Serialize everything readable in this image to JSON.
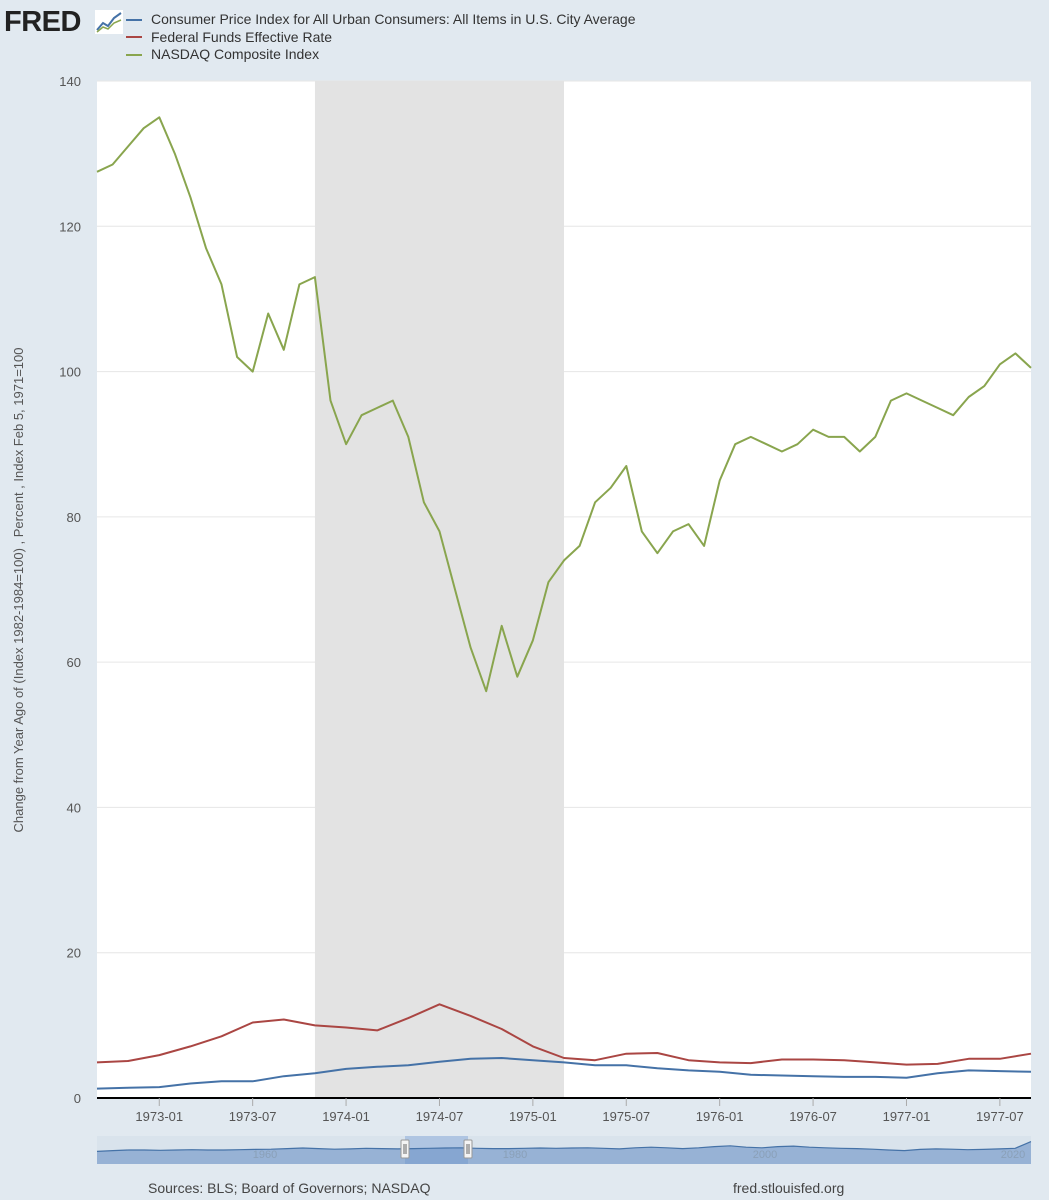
{
  "header": {
    "logo_text": "FRED",
    "logo_icon": "fred-line-chart-icon"
  },
  "footer": {
    "sources": "Sources: BLS; Board of Governors; NASDAQ",
    "url": "fred.stlouisfed.org"
  },
  "chart_data": {
    "type": "line",
    "ylabel": "Change from Year Ago of (Index 1982-1984=100) , Percent , Index Feb 5, 1971=100",
    "ylim": [
      0,
      140
    ],
    "yticks": [
      0,
      20,
      40,
      60,
      80,
      100,
      120,
      140
    ],
    "xlim": [
      "1972-09",
      "1977-09"
    ],
    "xticks": [
      "1973-01",
      "1973-07",
      "1974-01",
      "1974-07",
      "1975-01",
      "1975-07",
      "1976-01",
      "1976-07",
      "1977-01",
      "1977-07"
    ],
    "grid": true,
    "legend_position": "top",
    "recession": {
      "start": "1973-11",
      "end": "1975-03",
      "color": "#e3e3e3"
    },
    "series": [
      {
        "name": "Consumer Price Index for All Urban Consumers: All Items in U.S. City Average",
        "color": "#4572a7",
        "points": [
          [
            "1972-09",
            1.3
          ],
          [
            "1972-11",
            1.4
          ],
          [
            "1973-01",
            1.5
          ],
          [
            "1973-03",
            2.0
          ],
          [
            "1973-05",
            2.3
          ],
          [
            "1973-07",
            2.3
          ],
          [
            "1973-09",
            3.0
          ],
          [
            "1973-11",
            3.4
          ],
          [
            "1974-01",
            4.0
          ],
          [
            "1974-03",
            4.3
          ],
          [
            "1974-05",
            4.5
          ],
          [
            "1974-07",
            5.0
          ],
          [
            "1974-09",
            5.4
          ],
          [
            "1974-11",
            5.5
          ],
          [
            "1975-01",
            5.2
          ],
          [
            "1975-03",
            4.9
          ],
          [
            "1975-05",
            4.5
          ],
          [
            "1975-07",
            4.5
          ],
          [
            "1975-09",
            4.1
          ],
          [
            "1975-11",
            3.8
          ],
          [
            "1976-01",
            3.6
          ],
          [
            "1976-03",
            3.2
          ],
          [
            "1976-05",
            3.1
          ],
          [
            "1976-07",
            3.0
          ],
          [
            "1976-09",
            2.9
          ],
          [
            "1976-11",
            2.9
          ],
          [
            "1977-01",
            2.8
          ],
          [
            "1977-03",
            3.4
          ],
          [
            "1977-05",
            3.8
          ],
          [
            "1977-07",
            3.7
          ],
          [
            "1977-09",
            3.6
          ]
        ]
      },
      {
        "name": "Federal Funds Effective Rate",
        "color": "#aa4643",
        "points": [
          [
            "1972-09",
            4.9
          ],
          [
            "1972-11",
            5.1
          ],
          [
            "1973-01",
            5.9
          ],
          [
            "1973-03",
            7.1
          ],
          [
            "1973-05",
            8.5
          ],
          [
            "1973-07",
            10.4
          ],
          [
            "1973-09",
            10.8
          ],
          [
            "1973-11",
            10.0
          ],
          [
            "1974-01",
            9.7
          ],
          [
            "1974-03",
            9.3
          ],
          [
            "1974-05",
            11.0
          ],
          [
            "1974-07",
            12.9
          ],
          [
            "1974-09",
            11.3
          ],
          [
            "1974-11",
            9.5
          ],
          [
            "1975-01",
            7.1
          ],
          [
            "1975-03",
            5.5
          ],
          [
            "1975-05",
            5.2
          ],
          [
            "1975-07",
            6.1
          ],
          [
            "1975-09",
            6.2
          ],
          [
            "1975-11",
            5.2
          ],
          [
            "1976-01",
            4.9
          ],
          [
            "1976-03",
            4.8
          ],
          [
            "1976-05",
            5.3
          ],
          [
            "1976-07",
            5.3
          ],
          [
            "1976-09",
            5.2
          ],
          [
            "1976-11",
            4.9
          ],
          [
            "1977-01",
            4.6
          ],
          [
            "1977-03",
            4.7
          ],
          [
            "1977-05",
            5.4
          ],
          [
            "1977-07",
            5.4
          ],
          [
            "1977-09",
            6.1
          ]
        ]
      },
      {
        "name": "NASDAQ Composite Index",
        "color": "#89a54e",
        "points": [
          [
            "1972-09",
            127.5
          ],
          [
            "1972-10",
            128.5
          ],
          [
            "1972-11",
            131.0
          ],
          [
            "1972-12",
            133.5
          ],
          [
            "1973-01",
            135.0
          ],
          [
            "1973-02",
            130.0
          ],
          [
            "1973-03",
            124.0
          ],
          [
            "1973-04",
            117.0
          ],
          [
            "1973-05",
            112.0
          ],
          [
            "1973-06",
            102.0
          ],
          [
            "1973-07",
            100.0
          ],
          [
            "1973-08",
            108.0
          ],
          [
            "1973-09",
            103.0
          ],
          [
            "1973-10",
            112.0
          ],
          [
            "1973-11",
            113.0
          ],
          [
            "1973-12",
            96.0
          ],
          [
            "1974-01",
            90.0
          ],
          [
            "1974-02",
            94.0
          ],
          [
            "1974-03",
            95.0
          ],
          [
            "1974-04",
            96.0
          ],
          [
            "1974-05",
            91.0
          ],
          [
            "1974-06",
            82.0
          ],
          [
            "1974-07",
            78.0
          ],
          [
            "1974-08",
            70.0
          ],
          [
            "1974-09",
            62.0
          ],
          [
            "1974-10",
            56.0
          ],
          [
            "1974-11",
            65.0
          ],
          [
            "1974-12",
            58.0
          ],
          [
            "1975-01",
            63.0
          ],
          [
            "1975-02",
            71.0
          ],
          [
            "1975-03",
            74.0
          ],
          [
            "1975-04",
            76.0
          ],
          [
            "1975-05",
            82.0
          ],
          [
            "1975-06",
            84.0
          ],
          [
            "1975-07",
            87.0
          ],
          [
            "1975-08",
            78.0
          ],
          [
            "1975-09",
            75.0
          ],
          [
            "1975-10",
            78.0
          ],
          [
            "1975-11",
            79.0
          ],
          [
            "1975-12",
            76.0
          ],
          [
            "1976-01",
            85.0
          ],
          [
            "1976-02",
            90.0
          ],
          [
            "1976-03",
            91.0
          ],
          [
            "1976-04",
            90.0
          ],
          [
            "1976-05",
            89.0
          ],
          [
            "1976-06",
            90.0
          ],
          [
            "1976-07",
            92.0
          ],
          [
            "1976-08",
            91.0
          ],
          [
            "1976-09",
            91.0
          ],
          [
            "1976-10",
            89.0
          ],
          [
            "1976-11",
            91.0
          ],
          [
            "1976-12",
            96.0
          ],
          [
            "1977-01",
            97.0
          ],
          [
            "1977-02",
            96.0
          ],
          [
            "1977-03",
            95.0
          ],
          [
            "1977-04",
            94.0
          ],
          [
            "1977-05",
            96.5
          ],
          [
            "1977-06",
            98.0
          ],
          [
            "1977-07",
            101.0
          ],
          [
            "1977-08",
            102.5
          ],
          [
            "1977-09",
            100.5
          ]
        ]
      }
    ],
    "navigator": {
      "tick_labels": [
        "1960",
        "1980",
        "2000",
        "2020"
      ],
      "series_color": "#4572a7"
    }
  }
}
